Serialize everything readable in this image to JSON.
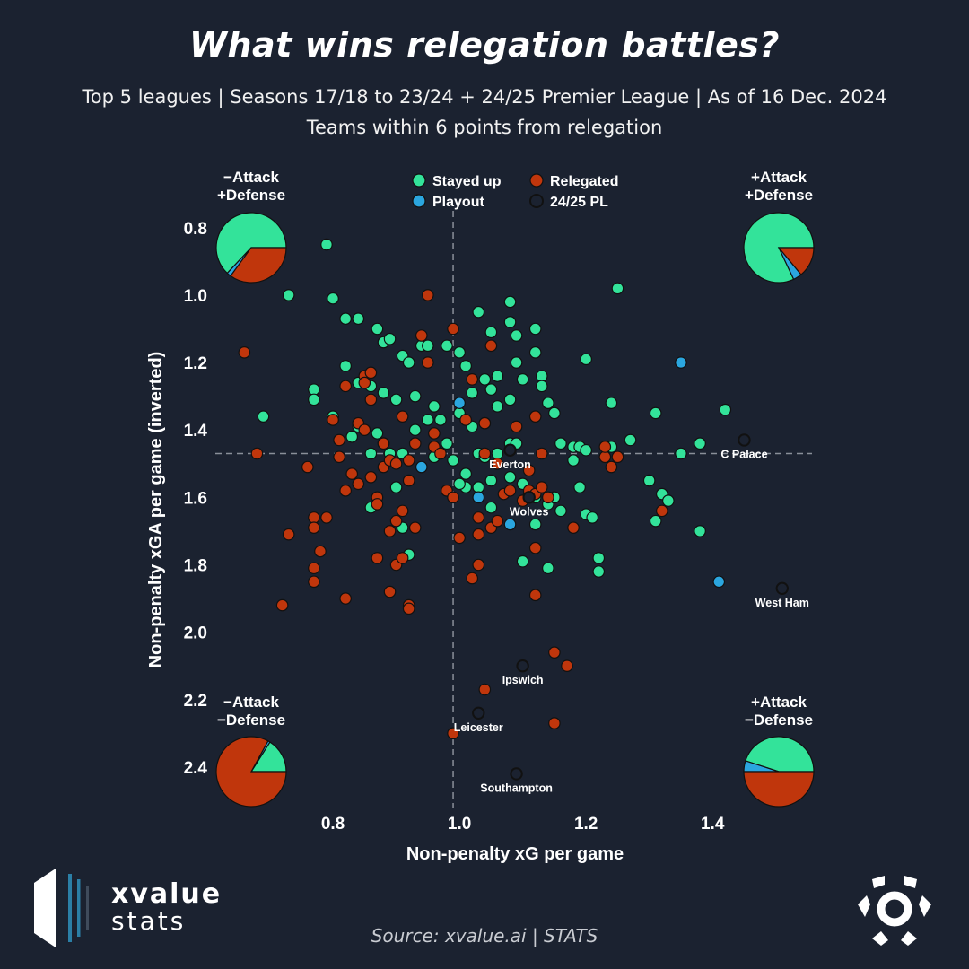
{
  "header": {
    "title": "What wins relegation battles?",
    "subtitle_1": "Top 5 leagues | Seasons 17/18 to 23/24 + 24/25 Premier League | As of 16 Dec. 2024",
    "subtitle_2": "Teams within 6 points from relegation"
  },
  "footer": {
    "source": "Source: xvalue.ai | STATS",
    "brand_line1": "xvalue",
    "brand_line2": "stats"
  },
  "colors": {
    "background": "#1b2230",
    "stayed_up": "#33e39a",
    "relegated": "#c0360c",
    "playout": "#2ba6df",
    "pl_2425_fill": "#1b2230",
    "point_edge": "#111111",
    "grid": "#8a8f99"
  },
  "chart_data": {
    "type": "scatter",
    "xlabel": "Non-penalty xG per game",
    "ylabel": "Non-penalty xGA per game (inverted)",
    "xlim": [
      0.6,
      1.55
    ],
    "ylim": [
      0.75,
      2.52
    ],
    "y_inverted": true,
    "x_ticks": [
      "0.8",
      "1.0",
      "1.2",
      "1.4"
    ],
    "y_ticks": [
      "0.8",
      "1.0",
      "1.2",
      "1.4",
      "1.6",
      "1.8",
      "2.0",
      "2.2",
      "2.4"
    ],
    "reference_lines": {
      "x": 0.99,
      "y": 1.47
    },
    "legend": [
      "Stayed up",
      "Relegated",
      "Playout",
      "24/25 PL"
    ],
    "legend_placement": "top-center",
    "quadrants": [
      {
        "position": "top-left",
        "label_1": "−Attack",
        "label_2": "+Defense",
        "stayed_up": 0.63,
        "playout": 0.02,
        "relegated": 0.35
      },
      {
        "position": "top-right",
        "label_1": "+Attack",
        "label_2": "+Defense",
        "stayed_up": 0.82,
        "playout": 0.04,
        "relegated": 0.14
      },
      {
        "position": "bottom-left",
        "label_1": "−Attack",
        "label_2": "−Defense",
        "stayed_up": 0.16,
        "playout": 0.01,
        "relegated": 0.83
      },
      {
        "position": "bottom-right",
        "label_1": "+Attack",
        "label_2": "−Defense",
        "stayed_up": 0.45,
        "playout": 0.05,
        "relegated": 0.5
      }
    ],
    "series": [
      {
        "name": "Stayed up",
        "points": [
          [
            0.79,
            0.85
          ],
          [
            0.73,
            1.0
          ],
          [
            0.8,
            1.01
          ],
          [
            0.82,
            1.07
          ],
          [
            0.84,
            1.07
          ],
          [
            0.87,
            1.1
          ],
          [
            0.88,
            1.14
          ],
          [
            0.89,
            1.13
          ],
          [
            0.91,
            1.18
          ],
          [
            0.92,
            1.2
          ],
          [
            0.94,
            1.15
          ],
          [
            0.95,
            1.15
          ],
          [
            0.98,
            1.15
          ],
          [
            1.0,
            1.17
          ],
          [
            1.01,
            1.21
          ],
          [
            1.03,
            1.05
          ],
          [
            1.05,
            1.11
          ],
          [
            1.08,
            1.08
          ],
          [
            1.08,
            1.02
          ],
          [
            1.09,
            1.12
          ],
          [
            1.09,
            1.2
          ],
          [
            1.12,
            1.1
          ],
          [
            1.12,
            1.17
          ],
          [
            1.13,
            1.24
          ],
          [
            1.13,
            1.27
          ],
          [
            1.14,
            1.32
          ],
          [
            1.15,
            1.35
          ],
          [
            1.1,
            1.25
          ],
          [
            1.08,
            1.31
          ],
          [
            1.06,
            1.24
          ],
          [
            1.04,
            1.25
          ],
          [
            1.05,
            1.28
          ],
          [
            1.02,
            1.29
          ],
          [
            1.0,
            1.35
          ],
          [
            1.02,
            1.39
          ],
          [
            1.04,
            1.38
          ],
          [
            1.06,
            1.33
          ],
          [
            0.96,
            1.33
          ],
          [
            0.93,
            1.3
          ],
          [
            0.9,
            1.31
          ],
          [
            0.88,
            1.29
          ],
          [
            0.86,
            1.27
          ],
          [
            0.84,
            1.26
          ],
          [
            0.82,
            1.21
          ],
          [
            0.77,
            1.28
          ],
          [
            0.77,
            1.31
          ],
          [
            0.69,
            1.36
          ],
          [
            0.8,
            1.36
          ],
          [
            0.84,
            1.39
          ],
          [
            0.87,
            1.41
          ],
          [
            0.88,
            1.44
          ],
          [
            0.89,
            1.47
          ],
          [
            0.91,
            1.47
          ],
          [
            0.93,
            1.4
          ],
          [
            0.95,
            1.37
          ],
          [
            0.97,
            1.37
          ],
          [
            0.98,
            1.44
          ],
          [
            0.96,
            1.48
          ],
          [
            0.99,
            1.49
          ],
          [
            1.01,
            1.53
          ],
          [
            1.03,
            1.47
          ],
          [
            1.04,
            1.48
          ],
          [
            1.06,
            1.47
          ],
          [
            1.08,
            1.44
          ],
          [
            1.09,
            1.44
          ],
          [
            1.05,
            1.55
          ],
          [
            1.03,
            1.57
          ],
          [
            1.01,
            1.57
          ],
          [
            1.0,
            1.56
          ],
          [
            1.08,
            1.54
          ],
          [
            1.1,
            1.56
          ],
          [
            1.11,
            1.59
          ],
          [
            1.12,
            1.6
          ],
          [
            1.12,
            1.68
          ],
          [
            1.1,
            1.79
          ],
          [
            1.14,
            1.81
          ],
          [
            1.16,
            1.44
          ],
          [
            1.18,
            1.45
          ],
          [
            1.19,
            1.45
          ],
          [
            1.2,
            1.46
          ],
          [
            1.18,
            1.49
          ],
          [
            1.19,
            1.57
          ],
          [
            1.2,
            1.65
          ],
          [
            1.21,
            1.66
          ],
          [
            1.22,
            1.78
          ],
          [
            1.22,
            1.82
          ],
          [
            1.16,
            1.64
          ],
          [
            1.14,
            1.62
          ],
          [
            1.15,
            1.6
          ],
          [
            1.24,
            1.45
          ],
          [
            1.27,
            1.43
          ],
          [
            1.24,
            1.32
          ],
          [
            1.2,
            1.19
          ],
          [
            1.25,
            0.98
          ],
          [
            1.3,
            1.55
          ],
          [
            1.31,
            1.35
          ],
          [
            1.32,
            1.59
          ],
          [
            1.33,
            1.61
          ],
          [
            1.31,
            1.67
          ],
          [
            1.35,
            1.47
          ],
          [
            1.38,
            1.44
          ],
          [
            1.38,
            1.7
          ],
          [
            1.42,
            1.34
          ],
          [
            0.92,
            1.77
          ],
          [
            0.91,
            1.69
          ],
          [
            0.9,
            1.57
          ],
          [
            0.86,
            1.63
          ],
          [
            0.86,
            1.47
          ],
          [
            0.83,
            1.42
          ],
          [
            1.05,
            1.63
          ]
        ]
      },
      {
        "name": "Relegated",
        "points": [
          [
            0.66,
            1.17
          ],
          [
            0.68,
            1.47
          ],
          [
            0.72,
            1.92
          ],
          [
            0.73,
            1.71
          ],
          [
            0.76,
            1.51
          ],
          [
            0.77,
            1.66
          ],
          [
            0.77,
            1.69
          ],
          [
            0.77,
            1.81
          ],
          [
            0.77,
            1.85
          ],
          [
            0.78,
            1.76
          ],
          [
            0.79,
            1.66
          ],
          [
            0.8,
            1.37
          ],
          [
            0.81,
            1.43
          ],
          [
            0.81,
            1.48
          ],
          [
            0.82,
            1.27
          ],
          [
            0.82,
            1.58
          ],
          [
            0.82,
            1.9
          ],
          [
            0.83,
            1.53
          ],
          [
            0.84,
            1.38
          ],
          [
            0.84,
            1.56
          ],
          [
            0.85,
            1.24
          ],
          [
            0.85,
            1.26
          ],
          [
            0.85,
            1.4
          ],
          [
            0.86,
            1.23
          ],
          [
            0.86,
            1.31
          ],
          [
            0.86,
            1.54
          ],
          [
            0.87,
            1.6
          ],
          [
            0.87,
            1.62
          ],
          [
            0.87,
            1.78
          ],
          [
            0.88,
            1.44
          ],
          [
            0.88,
            1.51
          ],
          [
            0.89,
            1.49
          ],
          [
            0.89,
            1.7
          ],
          [
            0.89,
            1.88
          ],
          [
            0.9,
            1.5
          ],
          [
            0.9,
            1.67
          ],
          [
            0.9,
            1.8
          ],
          [
            0.91,
            1.36
          ],
          [
            0.91,
            1.64
          ],
          [
            0.91,
            1.78
          ],
          [
            0.92,
            1.49
          ],
          [
            0.92,
            1.55
          ],
          [
            0.92,
            1.92
          ],
          [
            0.92,
            1.93
          ],
          [
            0.93,
            1.44
          ],
          [
            0.93,
            1.69
          ],
          [
            0.94,
            1.12
          ],
          [
            0.95,
            1.2
          ],
          [
            0.96,
            1.41
          ],
          [
            0.96,
            1.45
          ],
          [
            0.97,
            1.47
          ],
          [
            0.95,
            1.0
          ],
          [
            0.98,
            1.58
          ],
          [
            0.99,
            1.6
          ],
          [
            0.99,
            1.1
          ],
          [
            1.0,
            1.72
          ],
          [
            1.01,
            1.37
          ],
          [
            1.02,
            1.25
          ],
          [
            1.02,
            1.84
          ],
          [
            1.03,
            1.8
          ],
          [
            1.03,
            1.66
          ],
          [
            1.03,
            1.71
          ],
          [
            1.04,
            1.38
          ],
          [
            1.04,
            1.47
          ],
          [
            1.05,
            1.15
          ],
          [
            1.05,
            1.69
          ],
          [
            1.06,
            1.5
          ],
          [
            1.06,
            1.67
          ],
          [
            1.07,
            1.59
          ],
          [
            1.08,
            1.58
          ],
          [
            1.09,
            1.39
          ],
          [
            1.1,
            1.61
          ],
          [
            1.11,
            1.52
          ],
          [
            1.11,
            1.58
          ],
          [
            1.12,
            1.59
          ],
          [
            1.12,
            1.36
          ],
          [
            1.12,
            1.75
          ],
          [
            1.12,
            1.89
          ],
          [
            1.13,
            1.57
          ],
          [
            1.13,
            1.47
          ],
          [
            1.14,
            1.6
          ],
          [
            1.15,
            2.06
          ],
          [
            1.17,
            2.1
          ],
          [
            1.18,
            1.69
          ],
          [
            1.23,
            1.48
          ],
          [
            1.23,
            1.45
          ],
          [
            1.24,
            1.51
          ],
          [
            1.25,
            1.48
          ],
          [
            1.32,
            1.64
          ],
          [
            1.15,
            2.27
          ],
          [
            1.04,
            2.17
          ],
          [
            0.99,
            2.3
          ]
        ]
      },
      {
        "name": "Playout",
        "points": [
          [
            0.94,
            1.51
          ],
          [
            1.0,
            1.32
          ],
          [
            1.03,
            1.6
          ],
          [
            1.08,
            1.68
          ],
          [
            1.35,
            1.2
          ],
          [
            1.41,
            1.85
          ]
        ]
      },
      {
        "name": "24/25 PL",
        "points": [
          [
            1.08,
            1.46
          ],
          [
            1.11,
            1.6
          ],
          [
            1.45,
            1.43
          ],
          [
            1.51,
            1.87
          ],
          [
            1.1,
            2.1
          ],
          [
            1.03,
            2.24
          ],
          [
            1.09,
            2.42
          ]
        ],
        "labels": [
          "Everton",
          "Wolves",
          "C Palace",
          "West Ham",
          "Ipswich",
          "Leicester",
          "Southampton"
        ]
      }
    ]
  }
}
